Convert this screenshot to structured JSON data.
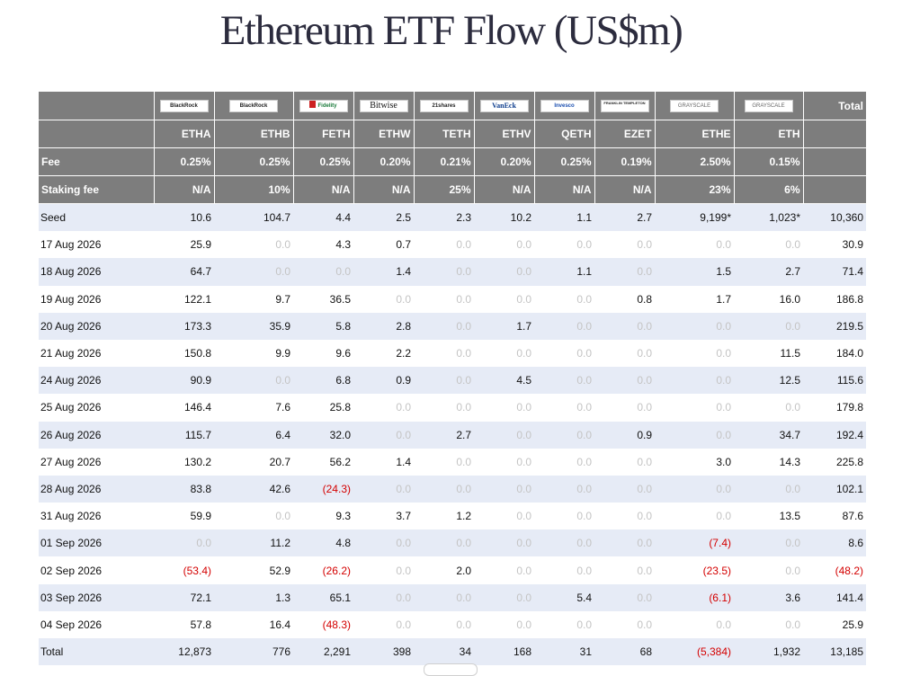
{
  "title": "Ethereum ETF Flow (US$m)",
  "issuers": [
    {
      "logo": "BlackRock",
      "icon": "blackrock-logo"
    },
    {
      "logo": "BlackRock",
      "icon": "blackrock-logo"
    },
    {
      "logo": "Fidelity",
      "icon": "fidelity-logo"
    },
    {
      "logo": "Bitwise",
      "icon": "bitwise-logo"
    },
    {
      "logo": "21shares",
      "icon": "21shares-logo"
    },
    {
      "logo": "VanEck",
      "icon": "vaneck-logo"
    },
    {
      "logo": "Invesco",
      "icon": "invesco-logo"
    },
    {
      "logo": "FRANKLIN TEMPLETON",
      "icon": "franklin-templeton-logo"
    },
    {
      "logo": "GRAYSCALE",
      "icon": "grayscale-logo"
    },
    {
      "logo": "GRAYSCALE",
      "icon": "grayscale-logo"
    }
  ],
  "total_header": "Total",
  "tickers": [
    "ETHA",
    "ETHB",
    "FETH",
    "ETHW",
    "TETH",
    "ETHV",
    "QETH",
    "EZET",
    "ETHE",
    "ETH"
  ],
  "fee_label": "Fee",
  "fees": [
    "0.25%",
    "0.25%",
    "0.25%",
    "0.20%",
    "0.21%",
    "0.20%",
    "0.25%",
    "0.19%",
    "2.50%",
    "0.15%"
  ],
  "staking_label": "Staking fee",
  "staking_fees": [
    "N/A",
    "10%",
    "N/A",
    "N/A",
    "25%",
    "N/A",
    "N/A",
    "N/A",
    "23%",
    "6%"
  ],
  "rows": [
    {
      "label": "Seed",
      "values": [
        "10.6",
        "104.7",
        "4.4",
        "2.5",
        "2.3",
        "10.2",
        "1.1",
        "2.7",
        "9,199*",
        "1,023*",
        "10,360"
      ]
    },
    {
      "label": "17 Aug 2026",
      "values": [
        "25.9",
        "0.0",
        "4.3",
        "0.7",
        "0.0",
        "0.0",
        "0.0",
        "0.0",
        "0.0",
        "0.0",
        "30.9"
      ]
    },
    {
      "label": "18 Aug 2026",
      "values": [
        "64.7",
        "0.0",
        "0.0",
        "1.4",
        "0.0",
        "0.0",
        "1.1",
        "0.0",
        "1.5",
        "2.7",
        "71.4"
      ]
    },
    {
      "label": "19 Aug 2026",
      "values": [
        "122.1",
        "9.7",
        "36.5",
        "0.0",
        "0.0",
        "0.0",
        "0.0",
        "0.8",
        "1.7",
        "16.0",
        "186.8"
      ]
    },
    {
      "label": "20 Aug 2026",
      "values": [
        "173.3",
        "35.9",
        "5.8",
        "2.8",
        "0.0",
        "1.7",
        "0.0",
        "0.0",
        "0.0",
        "0.0",
        "219.5"
      ]
    },
    {
      "label": "21 Aug 2026",
      "values": [
        "150.8",
        "9.9",
        "9.6",
        "2.2",
        "0.0",
        "0.0",
        "0.0",
        "0.0",
        "0.0",
        "11.5",
        "184.0"
      ]
    },
    {
      "label": "24 Aug 2026",
      "values": [
        "90.9",
        "0.0",
        "6.8",
        "0.9",
        "0.0",
        "4.5",
        "0.0",
        "0.0",
        "0.0",
        "12.5",
        "115.6"
      ]
    },
    {
      "label": "25 Aug 2026",
      "values": [
        "146.4",
        "7.6",
        "25.8",
        "0.0",
        "0.0",
        "0.0",
        "0.0",
        "0.0",
        "0.0",
        "0.0",
        "179.8"
      ]
    },
    {
      "label": "26 Aug 2026",
      "values": [
        "115.7",
        "6.4",
        "32.0",
        "0.0",
        "2.7",
        "0.0",
        "0.0",
        "0.9",
        "0.0",
        "34.7",
        "192.4"
      ]
    },
    {
      "label": "27 Aug 2026",
      "values": [
        "130.2",
        "20.7",
        "56.2",
        "1.4",
        "0.0",
        "0.0",
        "0.0",
        "0.0",
        "3.0",
        "14.3",
        "225.8"
      ]
    },
    {
      "label": "28 Aug 2026",
      "values": [
        "83.8",
        "42.6",
        "(24.3)",
        "0.0",
        "0.0",
        "0.0",
        "0.0",
        "0.0",
        "0.0",
        "0.0",
        "102.1"
      ]
    },
    {
      "label": "31 Aug 2026",
      "values": [
        "59.9",
        "0.0",
        "9.3",
        "3.7",
        "1.2",
        "0.0",
        "0.0",
        "0.0",
        "0.0",
        "13.5",
        "87.6"
      ]
    },
    {
      "label": "01 Sep 2026",
      "values": [
        "0.0",
        "11.2",
        "4.8",
        "0.0",
        "0.0",
        "0.0",
        "0.0",
        "0.0",
        "(7.4)",
        "0.0",
        "8.6"
      ]
    },
    {
      "label": "02 Sep 2026",
      "values": [
        "(53.4)",
        "52.9",
        "(26.2)",
        "0.0",
        "2.0",
        "0.0",
        "0.0",
        "0.0",
        "(23.5)",
        "0.0",
        "(48.2)"
      ]
    },
    {
      "label": "03 Sep 2026",
      "values": [
        "72.1",
        "1.3",
        "65.1",
        "0.0",
        "0.0",
        "0.0",
        "5.4",
        "0.0",
        "(6.1)",
        "3.6",
        "141.4"
      ]
    },
    {
      "label": "04 Sep 2026",
      "values": [
        "57.8",
        "16.4",
        "(48.3)",
        "0.0",
        "0.0",
        "0.0",
        "0.0",
        "0.0",
        "0.0",
        "0.0",
        "25.9"
      ]
    },
    {
      "label": "Total",
      "values": [
        "12,873",
        "776",
        "2,291",
        "398",
        "34",
        "168",
        "31",
        "68",
        "(5,384)",
        "1,932",
        "13,185"
      ]
    }
  ],
  "colors": {
    "header_bg": "#7d7d7d",
    "alt_row_bg": "#e6ebf6",
    "negative": "#d40000",
    "zero": "#c4c4c4",
    "title": "#2c2c3e"
  }
}
